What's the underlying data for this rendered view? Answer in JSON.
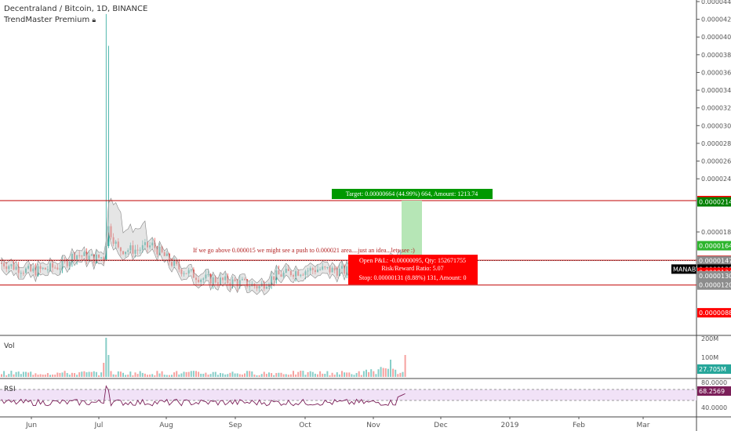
{
  "header": {
    "title": "Decentraland / Bitcoin, 1D, BINANCE",
    "indicator": "TrendMaster Premium ",
    "indicator_icon": "lock-icon"
  },
  "panes": {
    "volume_label": "Vol",
    "rsi_label": "RSI"
  },
  "price_axis": {
    "ticks": [
      "0.00004400",
      "0.00004200",
      "0.00004000",
      "0.00003800",
      "0.00003600",
      "0.00003400",
      "0.00003200",
      "0.00003000",
      "0.00002800",
      "0.00002600",
      "0.00002400",
      "0.00001800"
    ],
    "tags": [
      {
        "label": "0.00002154",
        "color": "#ff0000",
        "value": 2.154e-05
      },
      {
        "label": "0.00002140",
        "color": "#008000",
        "value": 2.14e-05
      },
      {
        "label": "0.00001645",
        "color": "#2db52d",
        "value": 1.645e-05
      },
      {
        "label": "0.00001481",
        "color": "#ff0000",
        "value": 1.481e-05
      },
      {
        "label": "0.00001476",
        "color": "#8c8c8c",
        "value": 1.476e-05
      },
      {
        "label": "0.00001381",
        "color": "#000000",
        "value": 1.381e-05
      },
      {
        "label": "0.00001345",
        "color": "#ff0000",
        "value": 1.345e-05
      },
      {
        "label": "0.00001305",
        "color": "#8c8c8c",
        "value": 1.305e-05
      },
      {
        "label": "0.00001201",
        "color": "#8c8c8c",
        "value": 1.201e-05
      },
      {
        "label": "0.00000888",
        "color": "#ff0000",
        "value": 8.88e-06
      }
    ],
    "symbol_tag": "MANABTC"
  },
  "volume_axis": {
    "ticks": [
      "200M",
      "100M"
    ],
    "current": "27.705M"
  },
  "rsi_axis": {
    "ticks": [
      "80.0000",
      "40.0000"
    ],
    "current": "68.2569"
  },
  "time_axis": {
    "labels": [
      "Jun",
      "Jul",
      "Aug",
      "Sep",
      "Oct",
      "Nov",
      "Dec",
      "2019",
      "Feb",
      "Mar"
    ]
  },
  "annotations": {
    "note": "If we go above 0.000015 we might see a push to 0.000021 area....just an idea...lets see :)",
    "target": "Target: 0.00000664 (44.99%) 664, Amount: 1213.74",
    "open_pnl": "Open P&L: -0.00000095, Qty: 152671755",
    "risk_reward": "Risk/Reward Ratio: 5.07",
    "stop": "Stop: 0.00000131 (8.88%) 131, Amount: 0"
  },
  "colors": {
    "up": "#26a69a",
    "down": "#ef5350",
    "target_box": "#009900",
    "stop_box": "#ff0000",
    "profit_zone": "#b6e6b6",
    "rsi_line": "#7b1f59",
    "rsi_band": "#f1e2f7",
    "hline": "#c00000"
  },
  "chart_data": {
    "type": "candlestick",
    "symbol": "MANABTC",
    "series": [
      {
        "name": "price",
        "x_start": "2018-05-20",
        "y_range": [
          1.155e-05,
          4.26e-05
        ],
        "close_last": 1.381e-05
      },
      {
        "name": "Vol",
        "last": 27705000
      },
      {
        "name": "RSI",
        "last": 68.2569
      }
    ],
    "horizontal_levels": [
      2.154e-05,
      1.481e-05,
      1.201e-05
    ]
  }
}
